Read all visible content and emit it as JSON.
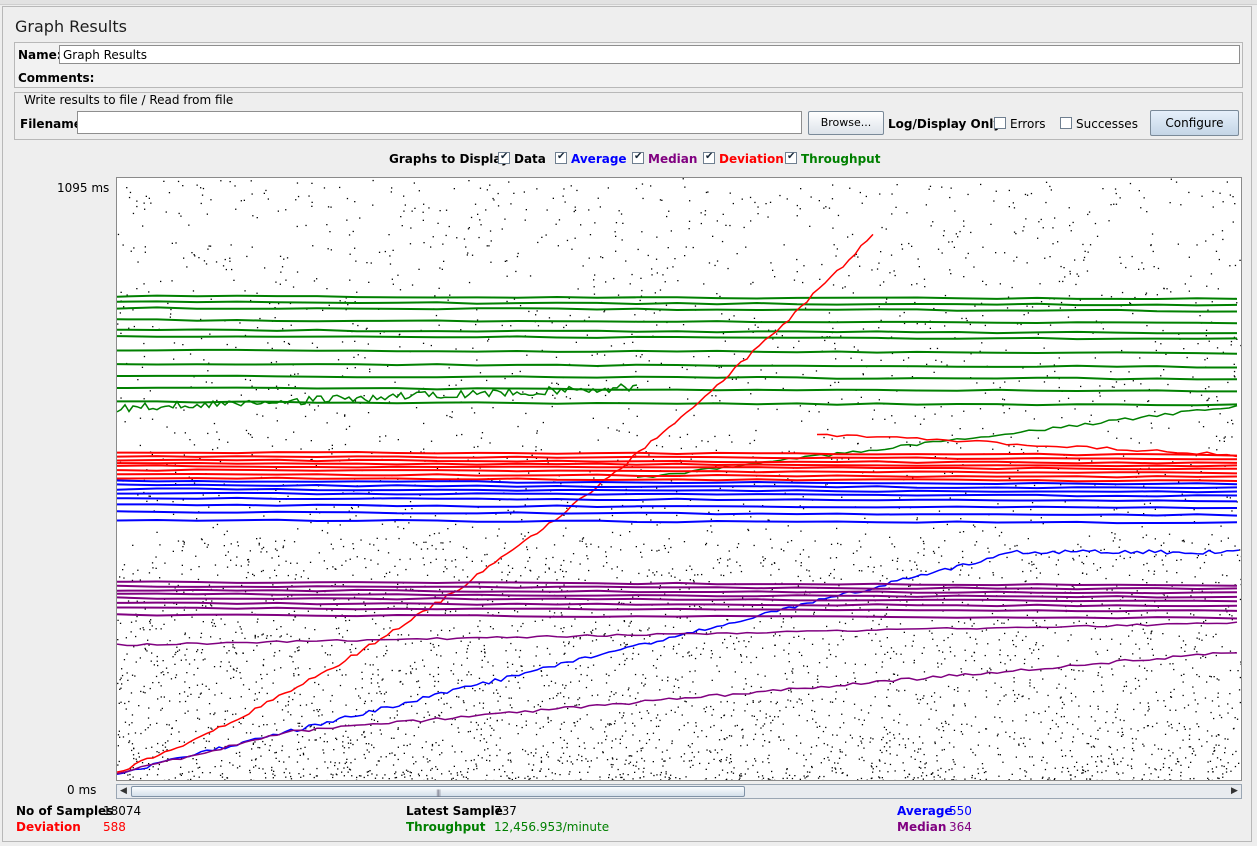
{
  "window": {
    "title": "Graph Results"
  },
  "name_field": {
    "label": "Name:",
    "value": "Graph Results"
  },
  "comments": {
    "label": "Comments:"
  },
  "file_panel": {
    "legend": "Write results to file / Read from file",
    "filename_label": "Filename",
    "filename_value": "",
    "browse_label": "Browse...",
    "log_display_label": "Log/Display Only:",
    "errors_label": "Errors",
    "successes_label": "Successes",
    "configure_label": "Configure"
  },
  "graphs_to_display": {
    "label": "Graphs to Display",
    "options": [
      {
        "label": "Data",
        "checked": true,
        "color": "#000000"
      },
      {
        "label": "Average",
        "checked": true,
        "color": "#0000ff"
      },
      {
        "label": "Median",
        "checked": true,
        "color": "#800080"
      },
      {
        "label": "Deviation",
        "checked": true,
        "color": "#ff0000"
      },
      {
        "label": "Throughput",
        "checked": true,
        "color": "#008000"
      }
    ]
  },
  "chart": {
    "y_max_label": "1095  ms",
    "y_min_label": "0  ms"
  },
  "chart_data": {
    "type": "line",
    "ylim": [
      0,
      1095
    ],
    "y_unit": "ms",
    "grid": false,
    "series": [
      {
        "name": "Data",
        "style": "scatter",
        "color": "#000000"
      },
      {
        "name": "Average",
        "color": "#0000ff"
      },
      {
        "name": "Median",
        "color": "#800080"
      },
      {
        "name": "Deviation",
        "color": "#ff0000"
      },
      {
        "name": "Throughput",
        "color": "#008000"
      }
    ]
  },
  "stats": {
    "samples_label": "No of Samples",
    "samples_value": "18074",
    "deviation_label": "Deviation",
    "deviation_value": "588",
    "latest_label": "Latest Sample",
    "latest_value": "737",
    "throughput_label": "Throughput",
    "throughput_value": "12,456.953/minute",
    "average_label": "Average",
    "average_value": "550",
    "median_label": "Median",
    "median_value": "364"
  },
  "colors": {
    "data": "#000000",
    "average": "#0000ff",
    "median": "#800080",
    "deviation": "#ff0000",
    "throughput": "#008000"
  }
}
